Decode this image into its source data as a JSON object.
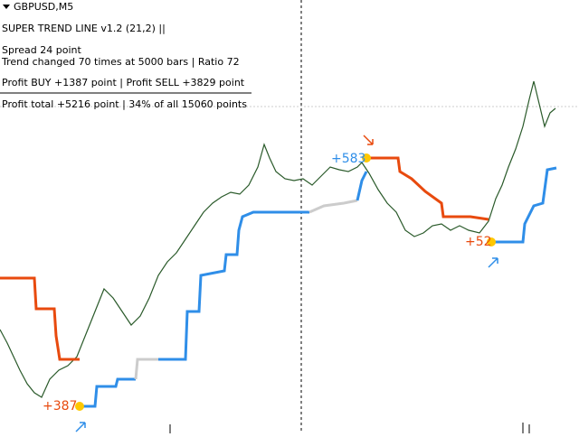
{
  "header": {
    "symbol": "GBPUSD,M5"
  },
  "info": {
    "indicator": "SUPER TREND LINE v1.2 (21,2) ||",
    "spread": "Spread 24 point",
    "trend": "Trend changed 70 times at 5000 bars | Ratio 72",
    "profit": "Profit  BUY +1387 point | Profit SELL +3829 point",
    "total": "Profit total +5216 point | 34% of all 15060 points"
  },
  "signals": [
    {
      "label": "+387"
    },
    {
      "label": "+583"
    },
    {
      "label": "+52"
    }
  ]
}
